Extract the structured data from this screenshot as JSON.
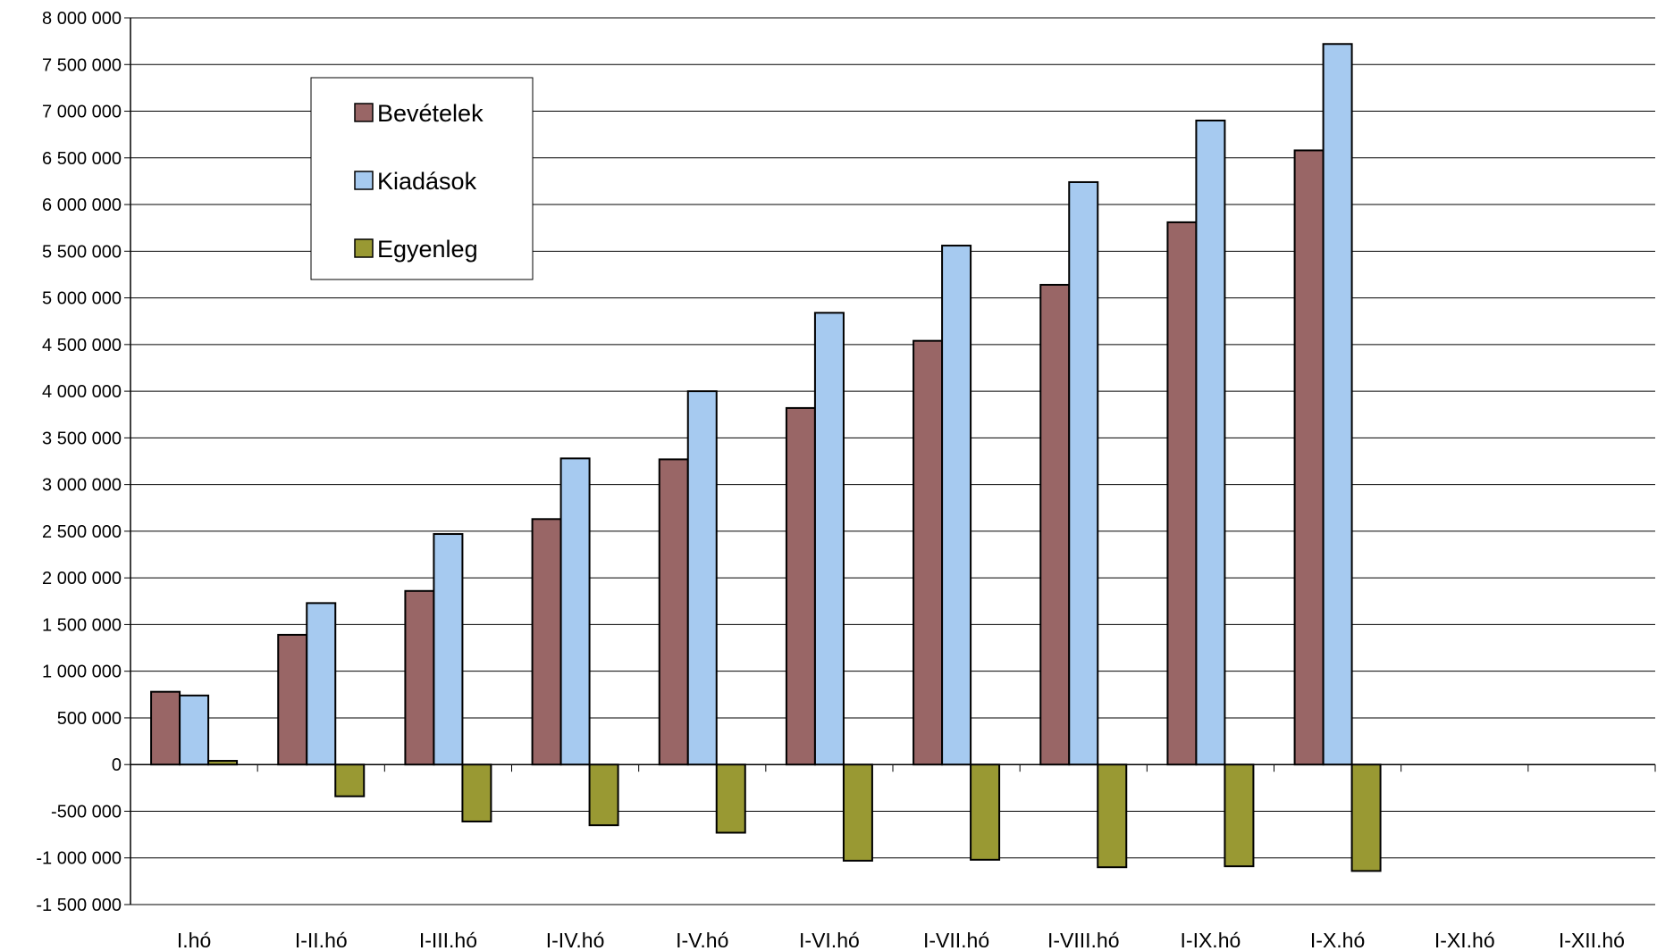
{
  "chart_data": {
    "type": "bar",
    "title": "",
    "xlabel": "",
    "ylabel": "",
    "ylim": [
      -1500000,
      8000000
    ],
    "ytick_step": 500000,
    "grid": "horizontal",
    "legend_position": "top-left",
    "categories": [
      "I.hó",
      "I-II.hó",
      "I-III.hó",
      "I-IV.hó",
      "I-V.hó",
      "I-VI.hó",
      "I-VII.hó",
      "I-VIII.hó",
      "I-IX.hó",
      "I-X.hó",
      "I-XI.hó",
      "I-XII.hó"
    ],
    "ytick_labels": [
      "8 000 000",
      "7 500 000",
      "7 000 000",
      "6 500 000",
      "6 000 000",
      "5 500 000",
      "5 000 000",
      "4 500 000",
      "4 000 000",
      "3 500 000",
      "3 000 000",
      "2 500 000",
      "2 000 000",
      "1 500 000",
      "1 000 000",
      "500 000",
      "0",
      "-500 000",
      "-1 000 000",
      "-1 500 000"
    ],
    "series": [
      {
        "name": "Bevételek",
        "color": "#996666",
        "values": [
          780000,
          1390000,
          1860000,
          2630000,
          3270000,
          3820000,
          4540000,
          5140000,
          5810000,
          6580000,
          null,
          null
        ]
      },
      {
        "name": "Kiadások",
        "color": "#a6caf0",
        "values": [
          740000,
          1730000,
          2470000,
          3280000,
          4000000,
          4840000,
          5560000,
          6240000,
          6900000,
          7720000,
          null,
          null
        ]
      },
      {
        "name": "Egyenleg",
        "color": "#999933",
        "values": [
          40000,
          -340000,
          -610000,
          -650000,
          -730000,
          -1030000,
          -1020000,
          -1100000,
          -1090000,
          -1140000,
          null,
          null
        ]
      }
    ]
  }
}
